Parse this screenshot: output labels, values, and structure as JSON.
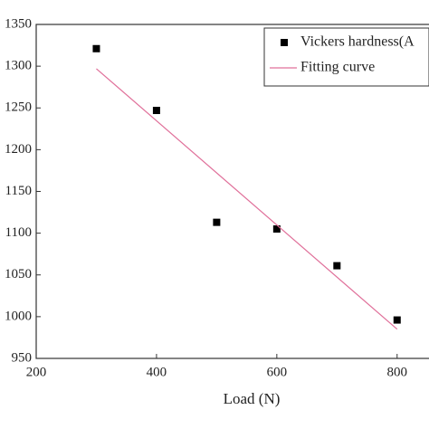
{
  "chart_data": {
    "type": "scatter",
    "x_label": "Load (N)",
    "xlim": [
      200,
      850
    ],
    "xticks": [
      200,
      400,
      600,
      800
    ],
    "ylim": [
      950,
      1350
    ],
    "yticks": [
      950,
      1000,
      1050,
      1100,
      1150,
      1200,
      1250,
      1300,
      1350
    ],
    "legend": "upper right",
    "series": [
      {
        "name": "Vickers hardness(A",
        "type": "scatter",
        "color": "#000000",
        "x": [
          300,
          400,
          500,
          600,
          700,
          800
        ],
        "values": [
          1321,
          1247,
          1113,
          1105,
          1061,
          996
        ]
      },
      {
        "name": "Fitting curve",
        "type": "line",
        "color": "#e0709a",
        "x": [
          300,
          800
        ],
        "values": [
          1297,
          985
        ]
      }
    ]
  }
}
